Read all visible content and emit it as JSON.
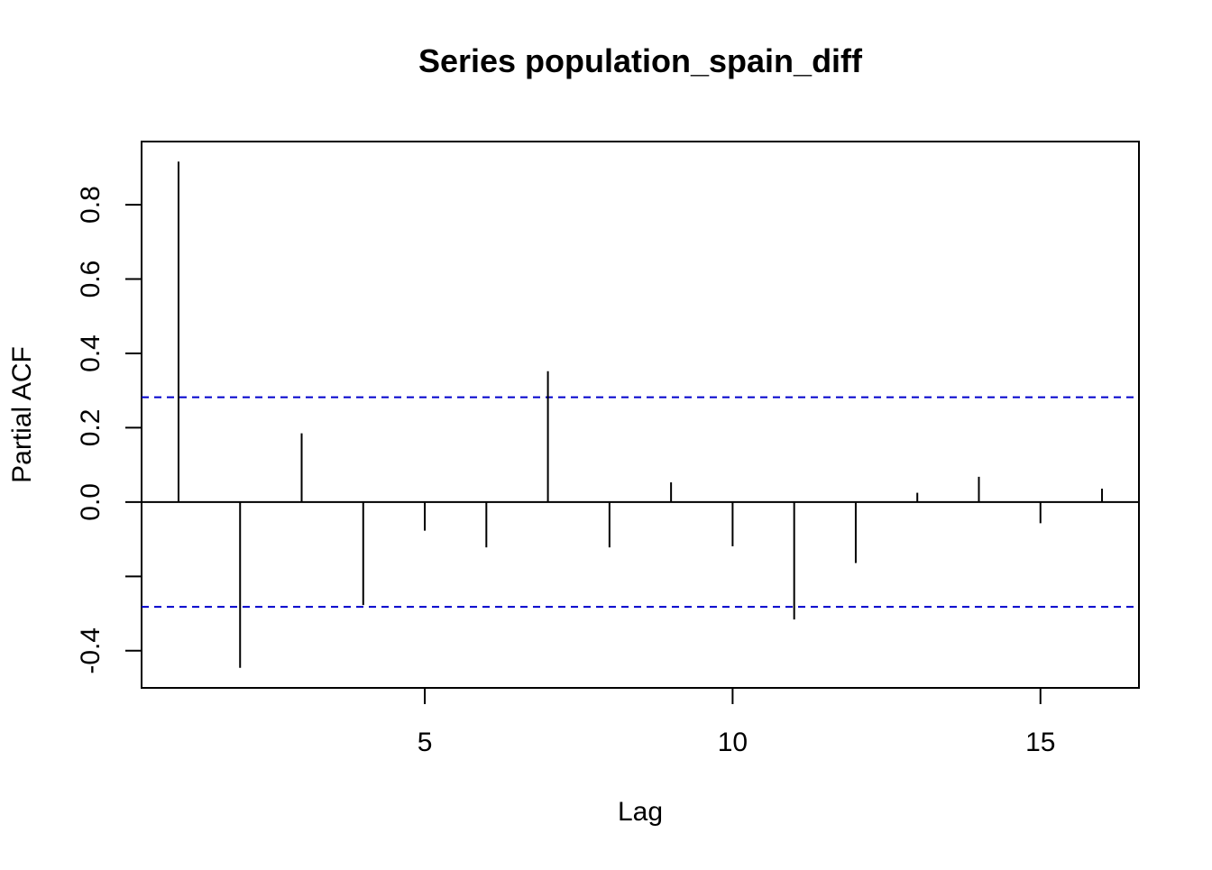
{
  "chart_data": {
    "type": "bar",
    "title": "Series  population_spain_diff",
    "xlabel": "Lag",
    "ylabel": "Partial ACF",
    "xlim": [
      0.4,
      16.6
    ],
    "ylim": [
      -0.5,
      0.97
    ],
    "xticks": [
      5,
      10,
      15
    ],
    "xtick_labels": [
      "5",
      "10",
      "15"
    ],
    "yticks": [
      -0.4,
      -0.2,
      0.0,
      0.2,
      0.4,
      0.6,
      0.8
    ],
    "ytick_labels": [
      "-0.4",
      "",
      "0.0",
      "0.2",
      "0.4",
      "0.6",
      "0.8"
    ],
    "lags": [
      1,
      2,
      3,
      4,
      5,
      6,
      7,
      8,
      9,
      10,
      11,
      12,
      13,
      14,
      15,
      16
    ],
    "values": [
      0.916,
      -0.446,
      0.185,
      -0.277,
      -0.077,
      -0.122,
      0.352,
      -0.122,
      0.053,
      -0.119,
      -0.316,
      -0.164,
      0.025,
      0.068,
      -0.057,
      0.036
    ],
    "confidence_bound": 0.282,
    "colors": {
      "bars": "#000000",
      "confidence_lines": "#0000cc",
      "zero_line": "#000000",
      "frame": "#000000"
    },
    "grid": false
  }
}
